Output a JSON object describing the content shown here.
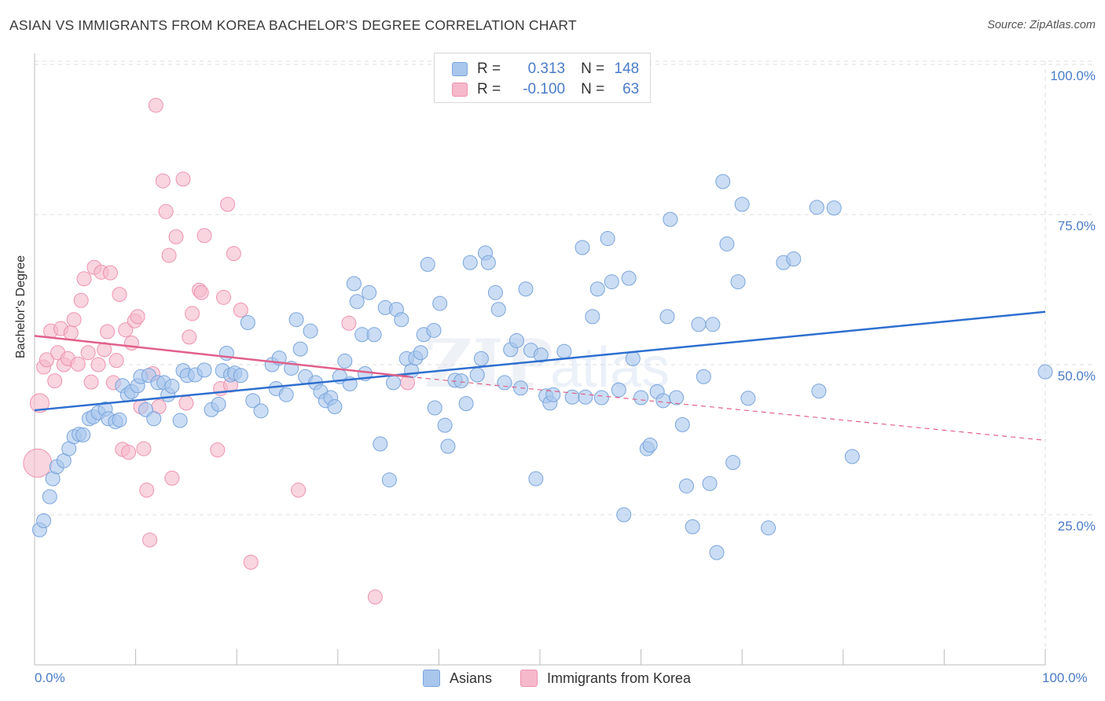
{
  "header": {
    "title": "ASIAN VS IMMIGRANTS FROM KOREA BACHELOR'S DEGREE CORRELATION CHART",
    "source": "Source: ZipAtlas.com"
  },
  "legend_box": {
    "rows": [
      {
        "r_label": "R =",
        "r_value": "0.313",
        "n_label": "N =",
        "n_value": "148"
      },
      {
        "r_label": "R =",
        "r_value": "-0.100",
        "n_label": "N =",
        "n_value": "63"
      }
    ]
  },
  "bottom_legend": {
    "asians": "Asians",
    "korea": "Immigrants from Korea"
  },
  "axes": {
    "ylabel": "Bachelor's Degree",
    "y_ticks": [
      "100.0%",
      "75.0%",
      "50.0%",
      "25.0%"
    ],
    "x_left": "0.0%",
    "x_right": "100.0%"
  },
  "colors": {
    "asians_fill": "#a9c6ec",
    "asians_stroke": "#7aa5dc",
    "asians_line": "#2e6fcf",
    "korea_fill": "#f5b9cb",
    "korea_stroke": "#ee93b0",
    "korea_line": "#e0608a",
    "grid": "#dddddd",
    "tick_text": "#4a7cc8"
  },
  "chart_data": {
    "type": "scatter",
    "xlabel": "",
    "ylabel": "Bachelor's Degree",
    "xlim": [
      0,
      100
    ],
    "ylim": [
      0,
      105
    ],
    "y_ticks": [
      25,
      50,
      75,
      100
    ],
    "grid": true,
    "series": [
      {
        "name": "Asians",
        "r": 0.313,
        "n": 148,
        "trend": {
          "x": [
            0,
            100
          ],
          "y": [
            42.4,
            58.8
          ]
        },
        "points": [
          [
            0.5,
            22.5
          ],
          [
            0.9,
            24
          ],
          [
            1.5,
            28
          ],
          [
            1.8,
            31
          ],
          [
            2.2,
            33
          ],
          [
            2.9,
            34
          ],
          [
            3.4,
            36
          ],
          [
            3.9,
            38
          ],
          [
            4.4,
            38.4
          ],
          [
            4.8,
            38.3
          ],
          [
            5.4,
            41
          ],
          [
            5.8,
            41.3
          ],
          [
            6.3,
            42
          ],
          [
            7,
            42.6
          ],
          [
            7.3,
            41
          ],
          [
            8,
            40.5
          ],
          [
            8.4,
            40.8
          ],
          [
            8.7,
            46.5
          ],
          [
            9.2,
            45
          ],
          [
            9.6,
            45.5
          ],
          [
            10.2,
            46.5
          ],
          [
            10.5,
            48
          ],
          [
            11,
            42.5
          ],
          [
            11.3,
            48.2
          ],
          [
            11.8,
            41
          ],
          [
            12.2,
            47
          ],
          [
            12.8,
            47
          ],
          [
            13.2,
            45
          ],
          [
            13.6,
            46.4
          ],
          [
            14.4,
            40.7
          ],
          [
            14.7,
            49
          ],
          [
            15.1,
            48.2
          ],
          [
            15.9,
            48.3
          ],
          [
            16.8,
            49.1
          ],
          [
            17.5,
            42.5
          ],
          [
            18.2,
            43.4
          ],
          [
            18.6,
            49
          ],
          [
            19,
            51.9
          ],
          [
            19.4,
            48.3
          ],
          [
            19.8,
            48.6
          ],
          [
            20.4,
            48.2
          ],
          [
            21.1,
            57
          ],
          [
            21.6,
            44
          ],
          [
            22.4,
            42.3
          ],
          [
            23.5,
            50
          ],
          [
            23.9,
            46
          ],
          [
            24.2,
            51.1
          ],
          [
            24.9,
            45
          ],
          [
            25.4,
            49.4
          ],
          [
            25.9,
            57.5
          ],
          [
            26.3,
            52.6
          ],
          [
            26.8,
            48
          ],
          [
            27.3,
            55.6
          ],
          [
            27.8,
            47
          ],
          [
            28.3,
            45.5
          ],
          [
            28.8,
            44
          ],
          [
            29.3,
            44.5
          ],
          [
            29.7,
            43
          ],
          [
            30.2,
            48
          ],
          [
            30.7,
            50.6
          ],
          [
            31.2,
            46.8
          ],
          [
            31.6,
            63.5
          ],
          [
            31.9,
            60.5
          ],
          [
            32.4,
            55
          ],
          [
            32.7,
            48.5
          ],
          [
            33.1,
            62
          ],
          [
            33.6,
            55
          ],
          [
            34.2,
            36.8
          ],
          [
            34.7,
            59.5
          ],
          [
            35.1,
            30.8
          ],
          [
            35.5,
            47
          ],
          [
            35.8,
            59.2
          ],
          [
            36.3,
            57.5
          ],
          [
            36.8,
            51
          ],
          [
            37.3,
            49
          ],
          [
            37.7,
            51.1
          ],
          [
            38.2,
            52
          ],
          [
            38.5,
            55
          ],
          [
            38.9,
            66.7
          ],
          [
            39.5,
            55.7
          ],
          [
            39.6,
            42.8
          ],
          [
            40.1,
            60.2
          ],
          [
            40.6,
            39.9
          ],
          [
            40.9,
            36.4
          ],
          [
            41.6,
            47.4
          ],
          [
            42.2,
            47.3
          ],
          [
            42.7,
            43.5
          ],
          [
            43.1,
            67
          ],
          [
            43.8,
            48.3
          ],
          [
            44.2,
            51
          ],
          [
            44.6,
            68.6
          ],
          [
            44.9,
            67
          ],
          [
            45.6,
            62
          ],
          [
            45.9,
            59.2
          ],
          [
            46.5,
            47
          ],
          [
            47.1,
            52.5
          ],
          [
            47.7,
            54
          ],
          [
            48.1,
            46.1
          ],
          [
            48.6,
            62.6
          ],
          [
            49.1,
            52.4
          ],
          [
            49.6,
            31
          ],
          [
            50.1,
            51.6
          ],
          [
            50.6,
            44.8
          ],
          [
            51,
            43.6
          ],
          [
            51.3,
            45
          ],
          [
            52.4,
            52.2
          ],
          [
            53.2,
            44.6
          ],
          [
            54.2,
            69.5
          ],
          [
            54.5,
            44.6
          ],
          [
            55.2,
            58
          ],
          [
            55.7,
            62.6
          ],
          [
            56.1,
            44.5
          ],
          [
            56.7,
            71
          ],
          [
            57.1,
            63.8
          ],
          [
            57.8,
            45.8
          ],
          [
            58.3,
            25
          ],
          [
            58.8,
            64.4
          ],
          [
            59.2,
            51
          ],
          [
            60,
            44.5
          ],
          [
            60.6,
            36
          ],
          [
            60.9,
            36.6
          ],
          [
            61.6,
            45.5
          ],
          [
            62.2,
            44
          ],
          [
            62.6,
            58
          ],
          [
            62.9,
            74.2
          ],
          [
            63.5,
            44.5
          ],
          [
            64.1,
            40
          ],
          [
            64.5,
            29.8
          ],
          [
            65.1,
            23
          ],
          [
            65.7,
            56.7
          ],
          [
            66.2,
            48
          ],
          [
            66.8,
            30.2
          ],
          [
            67.1,
            56.7
          ],
          [
            67.5,
            18.7
          ],
          [
            68.1,
            80.5
          ],
          [
            68.5,
            70.1
          ],
          [
            69.1,
            33.7
          ],
          [
            69.6,
            63.8
          ],
          [
            70,
            76.7
          ],
          [
            70.6,
            44.4
          ],
          [
            72.6,
            22.8
          ],
          [
            74.1,
            67
          ],
          [
            75.1,
            67.6
          ],
          [
            77.4,
            76.2
          ],
          [
            77.6,
            45.6
          ],
          [
            79.1,
            76.1
          ],
          [
            80.9,
            34.7
          ],
          [
            100,
            48.8
          ]
        ]
      },
      {
        "name": "Immigrants from Korea",
        "r": -0.1,
        "n": 63,
        "trend": {
          "x": [
            0,
            37
          ],
          "y": [
            54.8,
            48.0
          ]
        },
        "trend_extension": {
          "x": [
            37,
            100
          ],
          "y": [
            48.0,
            37.4
          ]
        },
        "points": [
          [
            0.3,
            33.6
          ],
          [
            0.5,
            43.6
          ],
          [
            0.9,
            49.6
          ],
          [
            1.2,
            50.8
          ],
          [
            1.6,
            55.6
          ],
          [
            2,
            47.3
          ],
          [
            2.3,
            52
          ],
          [
            2.6,
            56
          ],
          [
            2.9,
            50
          ],
          [
            3.3,
            51
          ],
          [
            3.6,
            55.3
          ],
          [
            3.9,
            57.5
          ],
          [
            4.3,
            50.1
          ],
          [
            4.6,
            60.7
          ],
          [
            4.9,
            64.3
          ],
          [
            5.3,
            52
          ],
          [
            5.6,
            47.1
          ],
          [
            5.9,
            66.2
          ],
          [
            6.3,
            50
          ],
          [
            6.6,
            65.4
          ],
          [
            6.9,
            52.5
          ],
          [
            7.2,
            55.5
          ],
          [
            7.5,
            65.3
          ],
          [
            7.8,
            47
          ],
          [
            8.1,
            50.7
          ],
          [
            8.4,
            61.7
          ],
          [
            8.7,
            35.9
          ],
          [
            9,
            55.8
          ],
          [
            9.3,
            35.4
          ],
          [
            9.6,
            53.6
          ],
          [
            9.9,
            57.3
          ],
          [
            10.2,
            58
          ],
          [
            10.5,
            43
          ],
          [
            10.8,
            36
          ],
          [
            11.1,
            29.1
          ],
          [
            11.4,
            20.8
          ],
          [
            11.7,
            48.5
          ],
          [
            12,
            93.2
          ],
          [
            12.3,
            43
          ],
          [
            12.7,
            80.6
          ],
          [
            13,
            75.5
          ],
          [
            13.3,
            68.2
          ],
          [
            13.6,
            31.1
          ],
          [
            14,
            71.3
          ],
          [
            14.7,
            80.9
          ],
          [
            15,
            43.6
          ],
          [
            15.3,
            54.6
          ],
          [
            15.6,
            58.5
          ],
          [
            16.3,
            62.4
          ],
          [
            16.5,
            62
          ],
          [
            16.8,
            71.5
          ],
          [
            18.1,
            35.8
          ],
          [
            18.4,
            46
          ],
          [
            18.7,
            61.2
          ],
          [
            19.1,
            76.7
          ],
          [
            19.4,
            46.6
          ],
          [
            19.7,
            68.5
          ],
          [
            20.4,
            59.1
          ],
          [
            21.4,
            17.1
          ],
          [
            26.1,
            29.1
          ],
          [
            31.1,
            56.9
          ],
          [
            33.7,
            11.3
          ],
          [
            36.9,
            47
          ]
        ]
      }
    ]
  }
}
